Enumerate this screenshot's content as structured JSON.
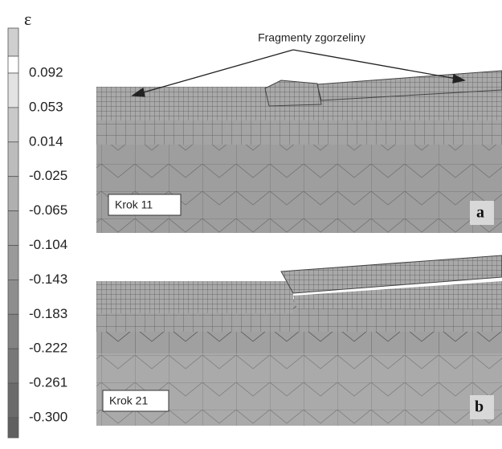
{
  "legend": {
    "symbol": "ε",
    "labels": [
      "0.092",
      "0.053",
      "0.014",
      "-0.025",
      "-0.065",
      "-0.104",
      "-0.143",
      "-0.183",
      "-0.222",
      "-0.261",
      "-0.300"
    ]
  },
  "annotation": "Fragmenty zgorzeliny",
  "panels": [
    {
      "step": "Krok 11",
      "letter": "a"
    },
    {
      "step": "Krok 21",
      "letter": "b"
    }
  ]
}
